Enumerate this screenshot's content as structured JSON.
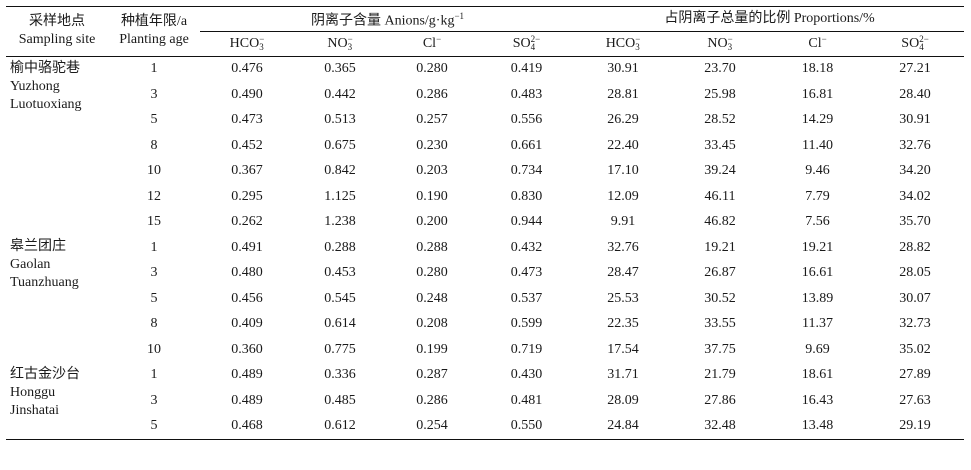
{
  "header": {
    "site_zh": "采样地点",
    "site_en": "Sampling site",
    "age_zh": "种植年限/a",
    "age_en": "Planting age",
    "group_content": "阴离子含量 Anions/g·kg",
    "group_content_sup": "−1",
    "group_prop": "占阴离子总量的比例 Proportions/%",
    "ions": [
      {
        "base": "HCO",
        "sub": "3",
        "sup": "−"
      },
      {
        "base": "NO",
        "sub": "3",
        "sup": "−"
      },
      {
        "base": "Cl",
        "sub": "",
        "sup": "−"
      },
      {
        "base": "SO",
        "sub": "4",
        "sup": "2−"
      }
    ]
  },
  "sites": [
    {
      "zh": "榆中骆驼巷",
      "en1": "Yuzhong",
      "en2": "Luotuoxiang",
      "rows": [
        [
          "1",
          "0.476",
          "0.365",
          "0.280",
          "0.419",
          "30.91",
          "23.70",
          "18.18",
          "27.21"
        ],
        [
          "3",
          "0.490",
          "0.442",
          "0.286",
          "0.483",
          "28.81",
          "25.98",
          "16.81",
          "28.40"
        ],
        [
          "5",
          "0.473",
          "0.513",
          "0.257",
          "0.556",
          "26.29",
          "28.52",
          "14.29",
          "30.91"
        ],
        [
          "8",
          "0.452",
          "0.675",
          "0.230",
          "0.661",
          "22.40",
          "33.45",
          "11.40",
          "32.76"
        ],
        [
          "10",
          "0.367",
          "0.842",
          "0.203",
          "0.734",
          "17.10",
          "39.24",
          "9.46",
          "34.20"
        ],
        [
          "12",
          "0.295",
          "1.125",
          "0.190",
          "0.830",
          "12.09",
          "46.11",
          "7.79",
          "34.02"
        ],
        [
          "15",
          "0.262",
          "1.238",
          "0.200",
          "0.944",
          "9.91",
          "46.82",
          "7.56",
          "35.70"
        ]
      ]
    },
    {
      "zh": "皋兰团庄",
      "en1": "Gaolan",
      "en2": "Tuanzhuang",
      "rows": [
        [
          "1",
          "0.491",
          "0.288",
          "0.288",
          "0.432",
          "32.76",
          "19.21",
          "19.21",
          "28.82"
        ],
        [
          "3",
          "0.480",
          "0.453",
          "0.280",
          "0.473",
          "28.47",
          "26.87",
          "16.61",
          "28.05"
        ],
        [
          "5",
          "0.456",
          "0.545",
          "0.248",
          "0.537",
          "25.53",
          "30.52",
          "13.89",
          "30.07"
        ],
        [
          "8",
          "0.409",
          "0.614",
          "0.208",
          "0.599",
          "22.35",
          "33.55",
          "11.37",
          "32.73"
        ],
        [
          "10",
          "0.360",
          "0.775",
          "0.199",
          "0.719",
          "17.54",
          "37.75",
          "9.69",
          "35.02"
        ]
      ]
    },
    {
      "zh": "红古金沙台",
      "en1": "Honggu",
      "en2": "Jinshatai",
      "rows": [
        [
          "1",
          "0.489",
          "0.336",
          "0.287",
          "0.430",
          "31.71",
          "21.79",
          "18.61",
          "27.89"
        ],
        [
          "3",
          "0.489",
          "0.485",
          "0.286",
          "0.481",
          "28.09",
          "27.86",
          "16.43",
          "27.63"
        ],
        [
          "5",
          "0.468",
          "0.612",
          "0.254",
          "0.550",
          "24.84",
          "32.48",
          "13.48",
          "29.19"
        ]
      ]
    }
  ]
}
